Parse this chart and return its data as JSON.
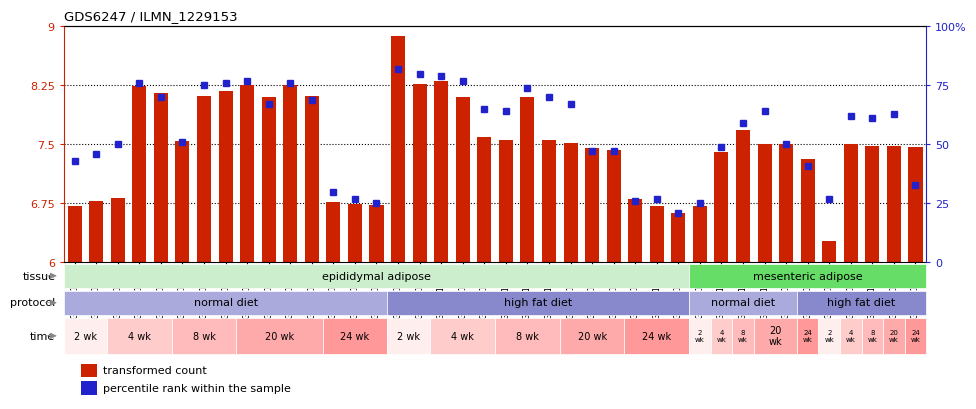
{
  "title": "GDS6247 / ILMN_1229153",
  "samples": [
    "GSM971546",
    "GSM971547",
    "GSM971548",
    "GSM971549",
    "GSM971550",
    "GSM971551",
    "GSM971552",
    "GSM971553",
    "GSM971554",
    "GSM971555",
    "GSM971556",
    "GSM971557",
    "GSM971558",
    "GSM971559",
    "GSM971560",
    "GSM971561",
    "GSM971562",
    "GSM971563",
    "GSM971564",
    "GSM971565",
    "GSM971566",
    "GSM971567",
    "GSM971568",
    "GSM971569",
    "GSM971570",
    "GSM971571",
    "GSM971572",
    "GSM971573",
    "GSM971574",
    "GSM971575",
    "GSM971576",
    "GSM971577",
    "GSM971578",
    "GSM971579",
    "GSM971580",
    "GSM971581",
    "GSM971582",
    "GSM971583",
    "GSM971584",
    "GSM971585"
  ],
  "bar_values": [
    6.72,
    6.78,
    6.82,
    8.24,
    8.15,
    7.54,
    8.12,
    8.18,
    8.25,
    8.1,
    8.25,
    8.12,
    6.77,
    6.74,
    6.73,
    8.88,
    8.27,
    8.3,
    8.1,
    7.6,
    7.55,
    8.1,
    7.55,
    7.52,
    7.45,
    7.43,
    6.8,
    6.72,
    6.63,
    6.72,
    7.4,
    7.68,
    7.5,
    7.5,
    7.32,
    6.27,
    7.5,
    7.48,
    7.48,
    7.47
  ],
  "percentile_values": [
    43,
    46,
    50,
    76,
    70,
    51,
    75,
    76,
    77,
    67,
    76,
    69,
    30,
    27,
    25,
    82,
    80,
    79,
    77,
    65,
    64,
    74,
    70,
    67,
    47,
    47,
    26,
    27,
    21,
    25,
    49,
    59,
    64,
    50,
    41,
    27,
    62,
    61,
    63,
    33
  ],
  "ylim_left": [
    6.0,
    9.0
  ],
  "ylim_right": [
    0,
    100
  ],
  "yticks_left": [
    6.0,
    6.75,
    7.5,
    8.25,
    9.0
  ],
  "yticks_right": [
    0,
    25,
    50,
    75,
    100
  ],
  "bar_color": "#CC2200",
  "dot_color": "#2222CC",
  "background_color": "#ffffff",
  "tissue_groups": [
    {
      "label": "epididymal adipose",
      "start": 0,
      "end": 29,
      "color": "#cceecc"
    },
    {
      "label": "mesenteric adipose",
      "start": 29,
      "end": 40,
      "color": "#66dd66"
    }
  ],
  "protocol_groups": [
    {
      "label": "normal diet",
      "start": 0,
      "end": 15,
      "color": "#aaaadd"
    },
    {
      "label": "high fat diet",
      "start": 15,
      "end": 29,
      "color": "#8888cc"
    },
    {
      "label": "normal diet",
      "start": 29,
      "end": 34,
      "color": "#aaaadd"
    },
    {
      "label": "high fat diet",
      "start": 34,
      "end": 40,
      "color": "#8888cc"
    }
  ],
  "time_groups": [
    {
      "label": "2 wk",
      "start": 0,
      "end": 2,
      "color": "#ffeeee"
    },
    {
      "label": "4 wk",
      "start": 2,
      "end": 5,
      "color": "#ffcccc"
    },
    {
      "label": "8 wk",
      "start": 5,
      "end": 8,
      "color": "#ffbbbb"
    },
    {
      "label": "20 wk",
      "start": 8,
      "end": 12,
      "color": "#ffaaaa"
    },
    {
      "label": "24 wk",
      "start": 12,
      "end": 15,
      "color": "#ff9999"
    },
    {
      "label": "2 wk",
      "start": 15,
      "end": 17,
      "color": "#ffeeee"
    },
    {
      "label": "4 wk",
      "start": 17,
      "end": 20,
      "color": "#ffcccc"
    },
    {
      "label": "8 wk",
      "start": 20,
      "end": 23,
      "color": "#ffbbbb"
    },
    {
      "label": "20 wk",
      "start": 23,
      "end": 26,
      "color": "#ffaaaa"
    },
    {
      "label": "24 wk",
      "start": 26,
      "end": 29,
      "color": "#ff9999"
    },
    {
      "label": "2\nwk",
      "start": 29,
      "end": 30,
      "color": "#ffeeee"
    },
    {
      "label": "4\nwk",
      "start": 30,
      "end": 31,
      "color": "#ffcccc"
    },
    {
      "label": "8\nwk",
      "start": 31,
      "end": 32,
      "color": "#ffbbbb"
    },
    {
      "label": "20\nwk",
      "start": 32,
      "end": 34,
      "color": "#ffaaaa"
    },
    {
      "label": "24\nwk",
      "start": 34,
      "end": 35,
      "color": "#ff9999"
    },
    {
      "label": "2\nwk",
      "start": 35,
      "end": 36,
      "color": "#ffeeee"
    },
    {
      "label": "4\nwk",
      "start": 36,
      "end": 37,
      "color": "#ffcccc"
    },
    {
      "label": "8\nwk",
      "start": 37,
      "end": 38,
      "color": "#ffbbbb"
    },
    {
      "label": "20\nwk",
      "start": 38,
      "end": 39,
      "color": "#ffaaaa"
    },
    {
      "label": "24\nwk",
      "start": 39,
      "end": 40,
      "color": "#ff9999"
    }
  ],
  "legend_labels": [
    "transformed count",
    "percentile rank within the sample"
  ]
}
